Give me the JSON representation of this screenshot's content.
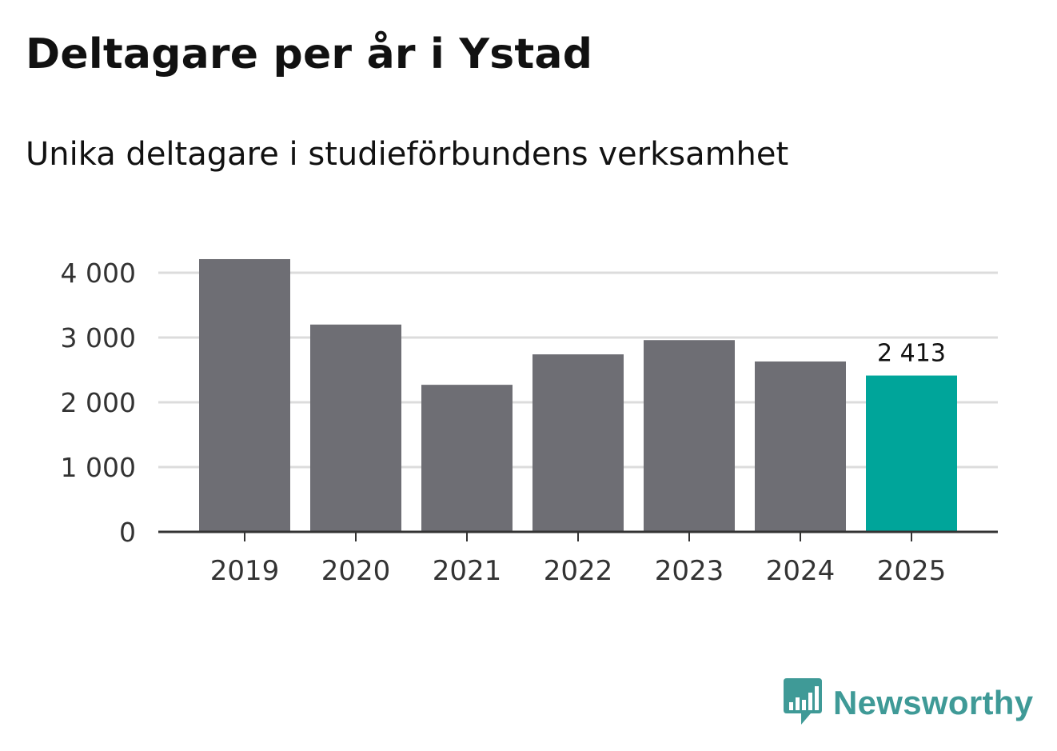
{
  "title": "Deltagare per år i Ystad",
  "subtitle": "Unika deltagare i studieförbundens verksamhet",
  "chart_data": {
    "type": "bar",
    "categories": [
      "2019",
      "2020",
      "2021",
      "2022",
      "2023",
      "2024",
      "2025"
    ],
    "values": [
      4210,
      3200,
      2270,
      2740,
      2960,
      2630,
      2413
    ],
    "ylim": [
      0,
      4000
    ],
    "yticks": [
      0,
      1000,
      2000,
      3000,
      4000
    ],
    "ytick_labels": [
      "0",
      "1 000",
      "2 000",
      "3 000",
      "4 000"
    ],
    "highlight_index": 6,
    "highlight_label": "2 413",
    "grid": true,
    "colors": {
      "bar": "#6e6e74",
      "highlight": "#00a59a",
      "grid": "#dcdcdc",
      "axis": "#333333"
    }
  },
  "brand": {
    "name": "Newsworthy",
    "icon": "newsworthy-logo-icon",
    "color": "#3f9a97"
  }
}
